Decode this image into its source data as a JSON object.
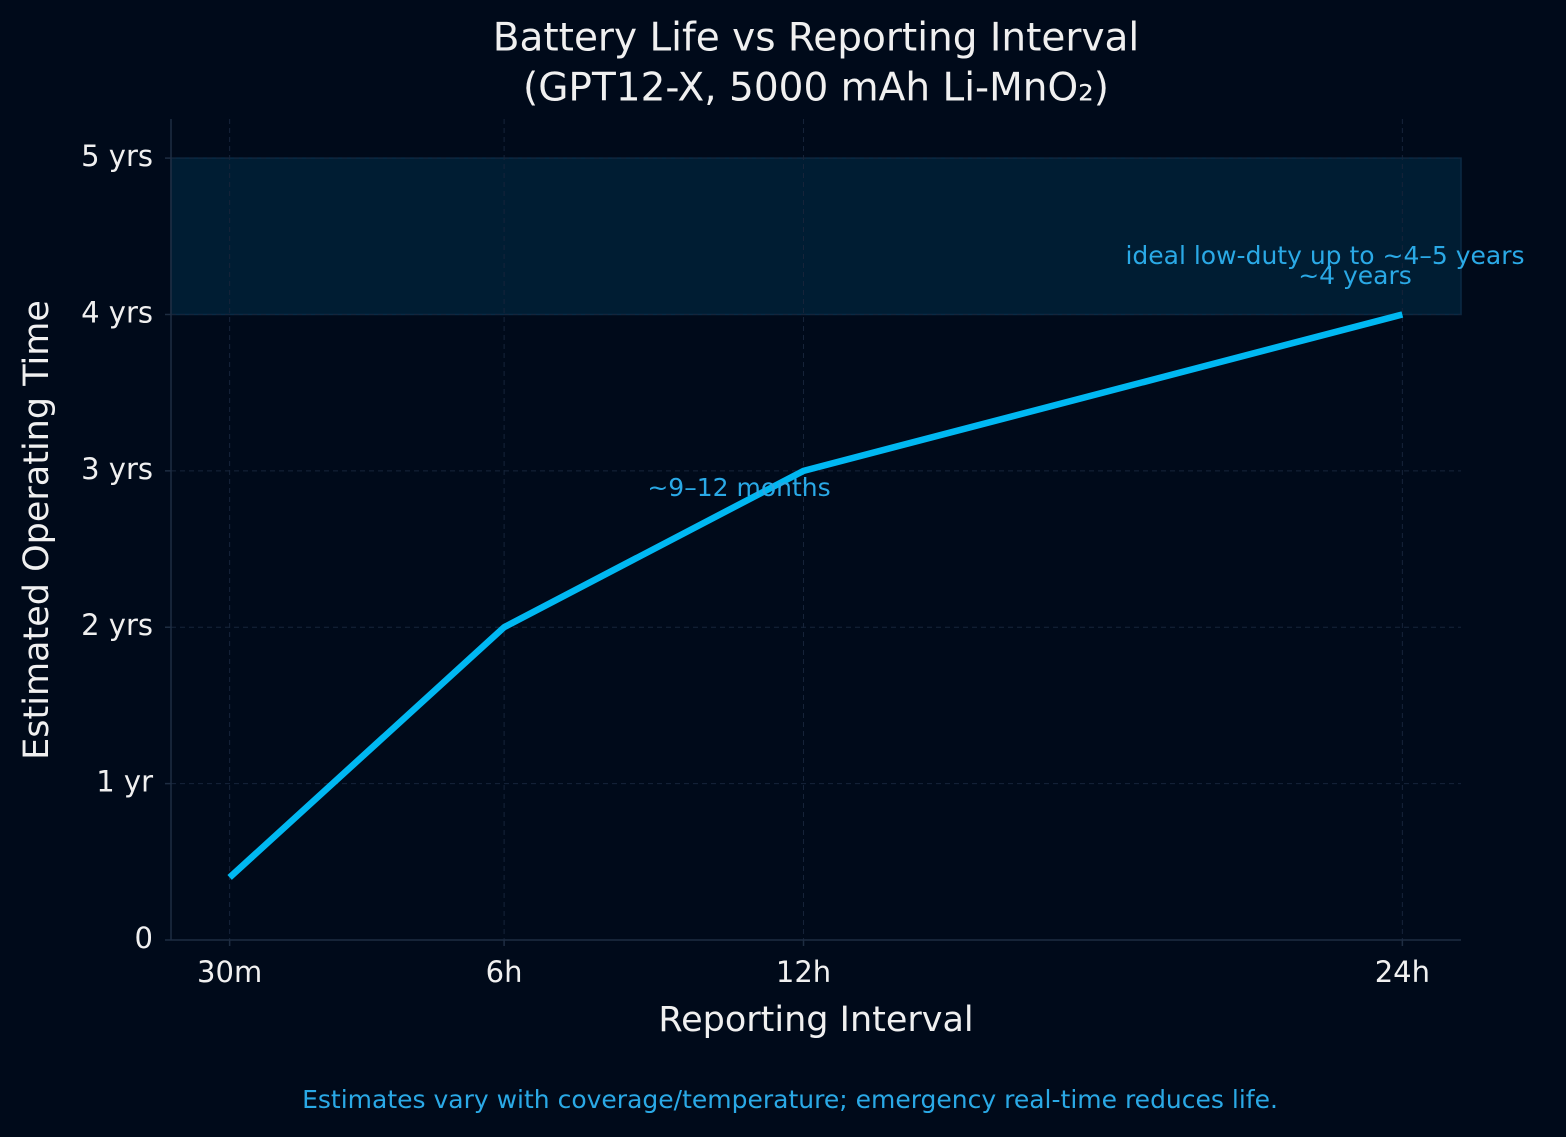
{
  "chart_data": {
    "type": "line",
    "title": [
      "Battery Life vs Reporting Interval",
      "(GPT12-X, 5000 mAh Li-MnO₂)"
    ],
    "x_label": "Reporting Interval",
    "y_label": "Estimated Operating Time",
    "x": [
      0.5,
      6,
      12,
      24
    ],
    "values": [
      0.4,
      2,
      3,
      4
    ],
    "color": "#00b8f2",
    "xlim": [
      -0.675,
      25.175
    ],
    "xticks": [
      {
        "value": 0.5,
        "label": "30m"
      },
      {
        "value": 6,
        "label": "6h"
      },
      {
        "value": 12,
        "label": "12h"
      },
      {
        "value": 24,
        "label": "24h"
      }
    ],
    "ylim": [
      0,
      5.25
    ],
    "yticks": [
      0,
      {
        "value": 1,
        "label": "1 yr"
      },
      {
        "value": 2,
        "label": "2 yrs"
      },
      {
        "value": 3,
        "label": "3 yrs"
      },
      {
        "value": 4,
        "label": "4 yrs"
      },
      {
        "value": 5,
        "label": "5 yrs"
      }
    ],
    "band": [
      4,
      5
    ],
    "band_color": "#001d33",
    "grid": true,
    "annotations": [
      "ideal low-duty up to ~4–5 years",
      "~4 years",
      "~9–12 months"
    ],
    "footnote": "Estimates vary with coverage/temperature; emergency real-time reduces life."
  }
}
